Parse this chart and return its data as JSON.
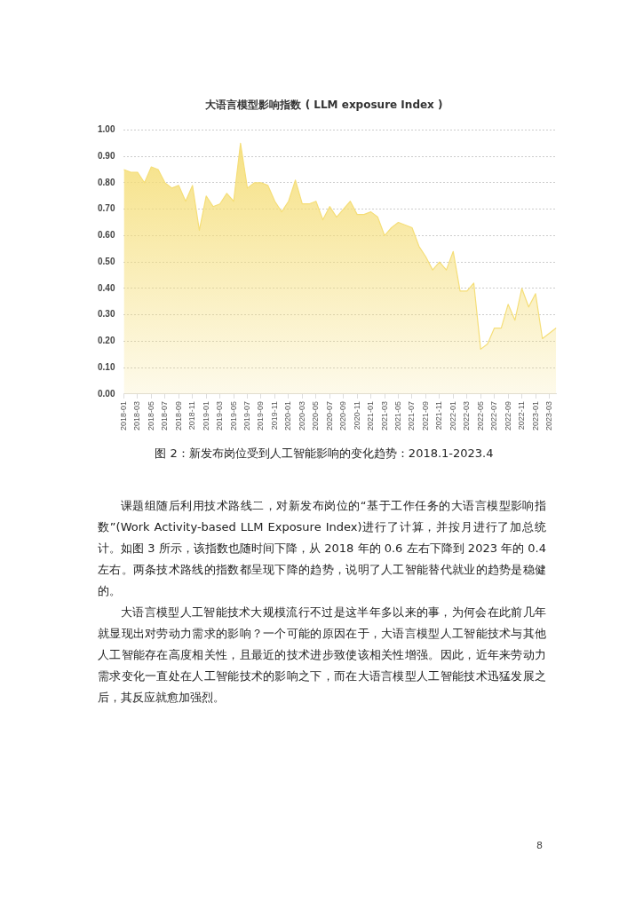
{
  "chart_data": {
    "type": "area",
    "title": "大语言模型影响指数 ( LLM exposure Index )",
    "categories": [
      "2018-01",
      null,
      "2018-03",
      null,
      "2018-05",
      null,
      "2018-07",
      null,
      "2018-09",
      null,
      "2018-11",
      null,
      "2019-01",
      null,
      "2019-03",
      null,
      "2019-05",
      null,
      "2019-07",
      null,
      "2019-09",
      null,
      "2019-11",
      null,
      "2020-01",
      null,
      "2020-03",
      null,
      "2020-05",
      null,
      "2020-07",
      null,
      "2020-09",
      null,
      "2020-11",
      null,
      "2021-01",
      null,
      "2021-03",
      null,
      "2021-05",
      null,
      "2021-07",
      null,
      "2021-09",
      null,
      "2021-11",
      null,
      "2022-01",
      null,
      "2022-03",
      null,
      "2022-05",
      null,
      "2022-07",
      null,
      "2022-09",
      null,
      "2022-11",
      null,
      "2023-01",
      null,
      "2023-03",
      null
    ],
    "values": [
      0.85,
      0.84,
      0.84,
      0.8,
      0.86,
      0.85,
      0.8,
      0.78,
      0.79,
      0.73,
      0.79,
      0.62,
      0.75,
      0.71,
      0.72,
      0.76,
      0.73,
      0.95,
      0.78,
      0.8,
      0.8,
      0.79,
      0.73,
      0.69,
      0.73,
      0.81,
      0.72,
      0.72,
      0.73,
      0.66,
      0.71,
      0.67,
      0.7,
      0.73,
      0.68,
      0.68,
      0.69,
      0.67,
      0.6,
      0.63,
      0.65,
      0.64,
      0.63,
      0.56,
      0.52,
      0.47,
      0.5,
      0.47,
      0.54,
      0.39,
      0.39,
      0.42,
      0.17,
      0.19,
      0.25,
      0.25,
      0.34,
      0.28,
      0.4,
      0.33,
      0.38,
      0.21,
      0.23,
      0.25
    ],
    "color": "#f5de78",
    "ylim": [
      0,
      1
    ],
    "yticks": [
      {
        "value": 0,
        "label": "0.00"
      },
      {
        "value": 0.1,
        "label": "0.10"
      },
      {
        "value": 0.2,
        "label": "0.20"
      },
      {
        "value": 0.3,
        "label": "0.30"
      },
      {
        "value": 0.4,
        "label": "0.40"
      },
      {
        "value": 0.5,
        "label": "0.50"
      },
      {
        "value": 0.6,
        "label": "0.60"
      },
      {
        "value": 0.7,
        "label": "0.70"
      },
      {
        "value": 0.8,
        "label": "0.80"
      },
      {
        "value": 0.9,
        "label": "0.90"
      },
      {
        "value": 1,
        "label": "1.00"
      }
    ],
    "grid": "y",
    "legend": false,
    "marker": "none",
    "annotations": [
      "图 2：新发布岗位受到人工智能影响的变化趋势：2018.1-2023.4",
      "课题组随后利用技术路线二，对新发布岗位的“基于工作任务的大语言模型影响指数”(Work Activity-based LLM Exposure Index)进行了计算，并按月进行了加总统计。如图 3 所示，该指数也随时间下降，从 2018 年的 0.6 左右下降到 2023 年的 0.4 左右。两条技术路线的指数都呈现下降的趋势，说明了人工智能替代就业的趋势是稳健的。",
      "大语言模型人工智能技术大规模流行不过是这半年多以来的事，为何会在此前几年就显现出对劳动力需求的影响？一个可能的原因在于，大语言模型人工智能技术与其他人工智能存在高度相关性，且最近的技术进步致使该相关性增强。因此，近年来劳动力需求变化一直处在人工智能技术的影响之下，而在大语言模型人工智能技术迅猛发展之后，其反应就愈加强烈。",
      "8"
    ]
  }
}
